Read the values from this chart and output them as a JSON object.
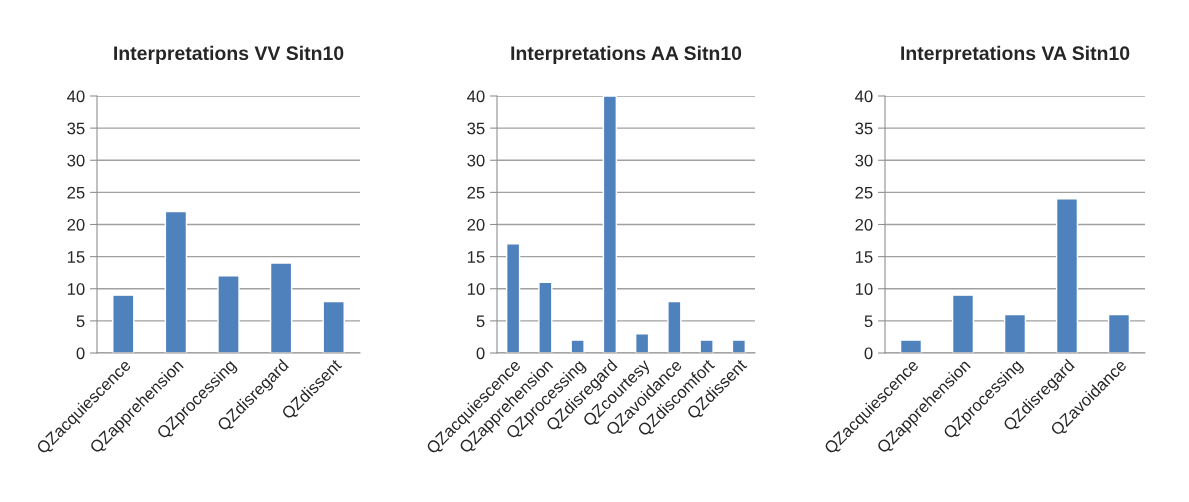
{
  "chart_data": [
    {
      "type": "bar",
      "title": "Interpretations VV Sitn10",
      "categories": [
        "QZacquiescence",
        "QZapprehension",
        "QZprocessing",
        "QZdisregard",
        "QZdissent"
      ],
      "values": [
        9,
        22,
        12,
        14,
        8
      ],
      "color": "#4f81bd",
      "ylim": [
        0,
        40
      ],
      "yticks": [
        0,
        5,
        10,
        15,
        20,
        25,
        30,
        35,
        40
      ],
      "grid": "y"
    },
    {
      "type": "bar",
      "title": "Interpretations AA Sitn10",
      "categories": [
        "QZacquiescence",
        "QZapprehension",
        "QZprocessing",
        "QZdisregard",
        "QZcourtesy",
        "QZavoidance",
        "QZdiscomfort",
        "QZdissent"
      ],
      "values": [
        17,
        11,
        2,
        40,
        3,
        8,
        2,
        2
      ],
      "color": "#4f81bd",
      "ylim": [
        0,
        40
      ],
      "yticks": [
        0,
        5,
        10,
        15,
        20,
        25,
        30,
        35,
        40
      ],
      "grid": "y"
    },
    {
      "type": "bar",
      "title": "Interpretations VA Sitn10",
      "categories": [
        "QZacquiescence",
        "QZapprehension",
        "QZprocessing",
        "QZdisregard",
        "QZavoidance"
      ],
      "values": [
        2,
        9,
        6,
        24,
        6
      ],
      "color": "#4f81bd",
      "ylim": [
        0,
        40
      ],
      "yticks": [
        0,
        5,
        10,
        15,
        20,
        25,
        30,
        35,
        40
      ],
      "grid": "y"
    }
  ]
}
